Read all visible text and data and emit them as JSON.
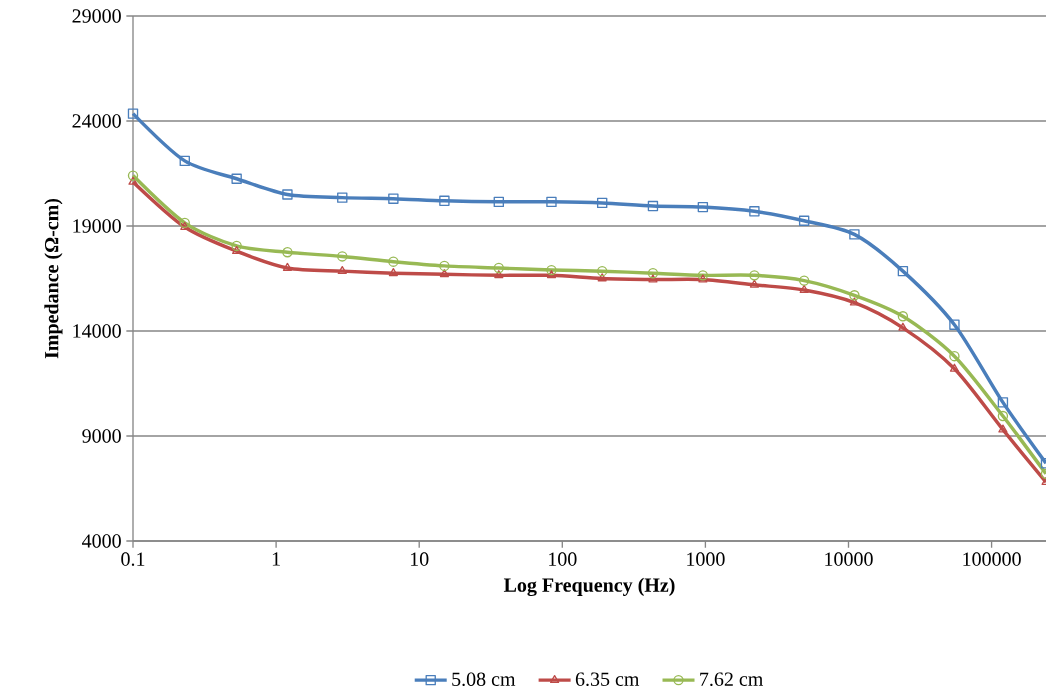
{
  "chart_data": {
    "type": "line",
    "xlabel": "Log Frequency (Hz)",
    "ylabel": "Impedance (Ω-cm)",
    "x": [
      0.1,
      0.23,
      0.53,
      1.2,
      2.9,
      6.6,
      15,
      36,
      84,
      190,
      430,
      960,
      2200,
      4900,
      11000,
      24000,
      55000,
      120000,
      240000
    ],
    "series": [
      {
        "name": "5.08 cm",
        "color": "#4a7ebb",
        "marker": "square",
        "values": [
          24350,
          22100,
          21250,
          20500,
          20350,
          20300,
          20200,
          20150,
          20150,
          20100,
          19950,
          19900,
          19700,
          19250,
          18600,
          16850,
          14300,
          10600,
          7700
        ]
      },
      {
        "name": "6.35 cm",
        "color": "#be4b48",
        "marker": "triangle",
        "values": [
          21100,
          18950,
          17800,
          17000,
          16850,
          16750,
          16700,
          16650,
          16650,
          16500,
          16450,
          16450,
          16200,
          15950,
          15350,
          14150,
          12200,
          9300,
          6800
        ]
      },
      {
        "name": "7.62 cm",
        "color": "#98b954",
        "marker": "circle",
        "values": [
          21400,
          19150,
          18050,
          17750,
          17550,
          17300,
          17100,
          17000,
          16900,
          16850,
          16750,
          16650,
          16650,
          16400,
          15700,
          14700,
          12800,
          9950,
          7200
        ]
      }
    ],
    "xlim": [
      0.1,
      240000
    ],
    "ylim": [
      4000,
      29000
    ],
    "xticks": [
      0.1,
      1,
      10,
      100,
      1000,
      10000,
      100000
    ],
    "yticks": [
      4000,
      9000,
      14000,
      19000,
      24000,
      29000
    ],
    "log": "x",
    "grid": "y",
    "legend": "bottom"
  }
}
